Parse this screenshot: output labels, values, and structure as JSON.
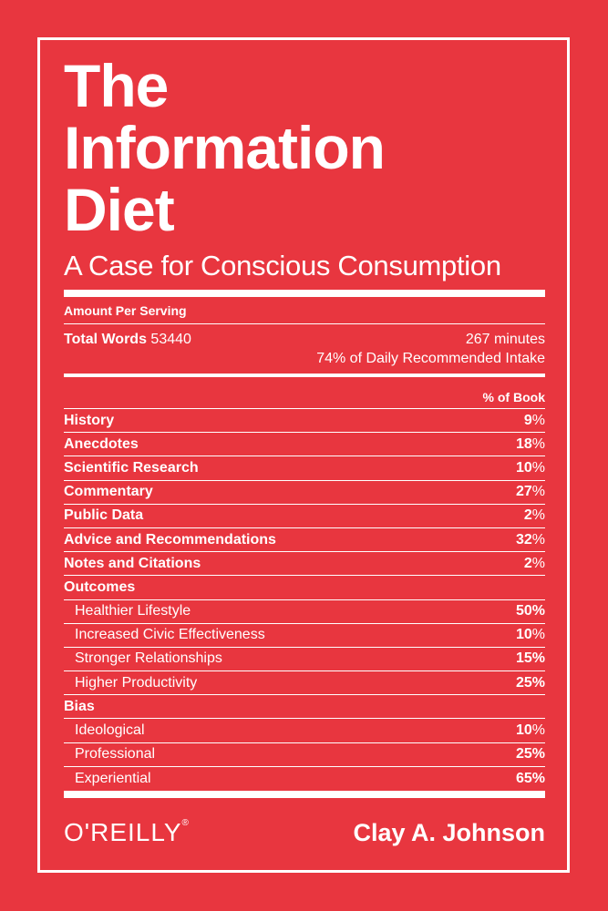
{
  "cover": {
    "title_lines": [
      "The",
      "Information",
      "Diet"
    ],
    "subtitle": "A Case for Conscious Consumption",
    "amount_per_serving": "Amount Per Serving",
    "total_words_label": "Total Words",
    "total_words_value": "53440",
    "minutes": "267 minutes",
    "daily_intake": "74% of Daily Recommended Intake",
    "pct_header": "% of Book",
    "rows": [
      {
        "label": "History",
        "num": "9",
        "pct": "%"
      },
      {
        "label": "Anecdotes",
        "num": "18",
        "pct": "%"
      },
      {
        "label": "Scientific Research",
        "num": "10",
        "pct": "%"
      },
      {
        "label": "Commentary",
        "num": "27",
        "pct": "%"
      },
      {
        "label": "Public Data",
        "num": "2",
        "pct": "%"
      },
      {
        "label": "Advice and Recommendations",
        "num": "32",
        "pct": "%"
      },
      {
        "label": "Notes and Citations",
        "num": "2",
        "pct": "%"
      },
      {
        "label": "Outcomes",
        "num": "",
        "pct": ""
      },
      {
        "label": "Healthier Lifestyle",
        "num": "50%",
        "pct": ""
      },
      {
        "label": "Increased Civic Effectiveness",
        "num": "10",
        "pct": "%"
      },
      {
        "label": "Stronger Relationships",
        "num": "15%",
        "pct": ""
      },
      {
        "label": "Higher Productivity",
        "num": "25%",
        "pct": ""
      },
      {
        "label": "Bias",
        "num": "",
        "pct": ""
      },
      {
        "label": "Ideological",
        "num": "10",
        "pct": "%"
      },
      {
        "label": "Professional",
        "num": "25%",
        "pct": ""
      },
      {
        "label": "Experiential",
        "num": "65%",
        "pct": ""
      }
    ],
    "publisher": "O'REILLY",
    "publisher_mark": "®",
    "author": "Clay A. Johnson"
  },
  "colors": {
    "background": "#e8363f",
    "text": "#ffffff"
  }
}
